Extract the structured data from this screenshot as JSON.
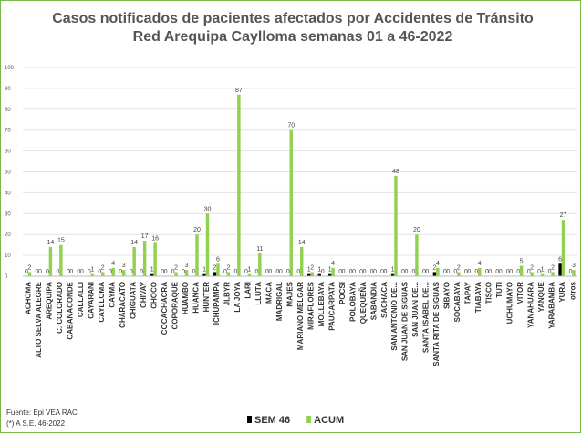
{
  "chart_data": {
    "type": "bar",
    "title": "Casos notificados  de pacientes afectados por Accidentes de Tránsito Red Arequipa Caylloma  semanas 01 a 46-2022",
    "categories": [
      "ACHOMA",
      "ALTO SELVA ALEGRE",
      "AREQUIPA",
      "C. COLORADO",
      "CABANACONDE",
      "CALLALLI",
      "CAYARANI",
      "CAYLLOMA",
      "CAYMA",
      "CHARACATO",
      "CHIGUATA",
      "CHIVAY",
      "CHOCO",
      "COCACHACRA",
      "COPORAQUE",
      "HUAMBO",
      "HUANCA",
      "HUNTER",
      "ICHUPAMPA",
      "JLBYR",
      "LA JOYA",
      "LARI",
      "LLUTA",
      "MACA",
      "MADRIGAL",
      "MAJES",
      "MARIANO MELGAR",
      "MIRAFLORES",
      "MOLLEBAYA",
      "PAUCARPATA",
      "POCSI",
      "POLOBAYA",
      "QUEQUEÑA",
      "SABANDIA",
      "SACHACA",
      "SAN ANTONIO DE...",
      "SAN JUAN DE SIGUAS",
      "SAN JUAN DE...",
      "SANTA ISABEL DE...",
      "SANTA RITA DE SIGUAS",
      "SIBAYO",
      "SOCABAYA",
      "TAPAY",
      "TIABAYA",
      "TISCO",
      "TUTI",
      "UCHUMAYO",
      "VITOR",
      "YANAHUARA",
      "YANQUE",
      "YARABAMBA",
      "YURA",
      "otros"
    ],
    "series": [
      {
        "name": "SEM 46",
        "color": "#000000",
        "values": [
          0,
          0,
          0,
          0,
          0,
          0,
          0,
          0,
          0,
          0,
          0,
          0,
          1,
          0,
          0,
          0,
          0,
          1,
          2,
          0,
          0,
          0,
          0,
          0,
          0,
          0,
          0,
          1,
          1,
          1,
          0,
          0,
          0,
          0,
          0,
          1,
          0,
          0,
          0,
          2,
          0,
          0,
          0,
          0,
          0,
          0,
          0,
          0,
          0,
          0,
          0,
          6,
          0
        ]
      },
      {
        "name": "ACUM",
        "color": "#92d050",
        "values": [
          2,
          0,
          14,
          15,
          0,
          0,
          1,
          2,
          4,
          3,
          14,
          17,
          16,
          0,
          2,
          3,
          20,
          30,
          6,
          2,
          87,
          1,
          11,
          0,
          0,
          70,
          14,
          2,
          0,
          4,
          0,
          0,
          0,
          0,
          0,
          48,
          0,
          20,
          0,
          4,
          0,
          2,
          0,
          4,
          0,
          0,
          0,
          5,
          2,
          1,
          2,
          27,
          3
        ]
      }
    ],
    "ylim": [
      0,
      100
    ],
    "yticks": [
      0,
      10,
      20,
      30,
      40,
      50,
      60,
      70,
      80,
      90,
      100
    ],
    "grid": true,
    "source": "Fuente: Epi VEA RAC",
    "note": "(*) A S.E. 46-2022"
  }
}
